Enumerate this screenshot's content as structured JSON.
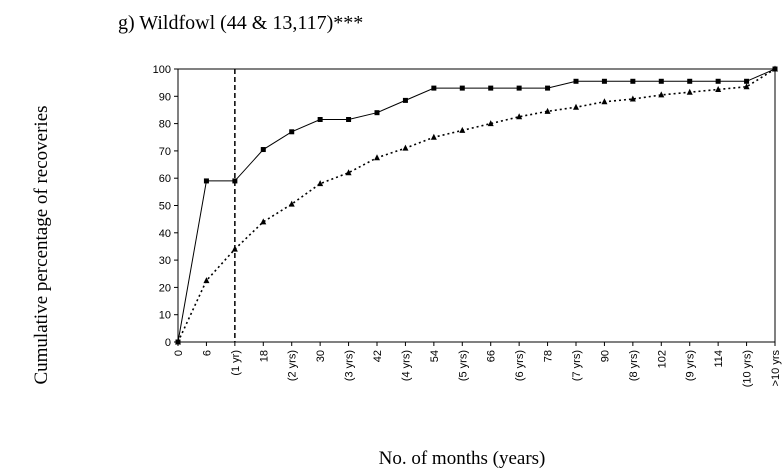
{
  "chart_data": {
    "type": "line",
    "title": "g) Wildfowl (44 & 13,117)***",
    "y_label": "Cumulative percentage of recoveries",
    "x_label": "No. of months (years)",
    "categories": [
      "0",
      "6",
      "(1 yr)",
      "18",
      "(2 yrs)",
      "30",
      "(3 yrs)",
      "42",
      "(4 yrs)",
      "54",
      "(5 yrs)",
      "66",
      "(6 yrs)",
      "78",
      "(7 yrs)",
      "90",
      "(8 yrs)",
      "102",
      "(9 yrs)",
      "114",
      "(10 yrs)",
      ">10 yrs"
    ],
    "series": [
      {
        "color": "#000000",
        "line_style": "solid",
        "marker": "square",
        "values": [
          0,
          59,
          59,
          70.5,
          77,
          81.5,
          81.5,
          84,
          88.5,
          93,
          93,
          93,
          93,
          93,
          95.5,
          95.5,
          95.5,
          95.5,
          95.5,
          95.5,
          95.5,
          100
        ]
      },
      {
        "color": "#000000",
        "line_style": "dotted",
        "marker": "triangle",
        "values": [
          0,
          22.5,
          34,
          44,
          50.5,
          58,
          62,
          67.5,
          71,
          75,
          77.5,
          80,
          82.5,
          84.5,
          86,
          88,
          89,
          90.5,
          91.5,
          92.5,
          93.5,
          100
        ]
      }
    ],
    "ylim": [
      0,
      100
    ],
    "yticks": [
      0,
      10,
      20,
      30,
      40,
      50,
      60,
      70,
      80,
      90,
      100
    ],
    "reference_line": {
      "category": "(1 yr)",
      "style": "dashed"
    },
    "grid": false
  }
}
